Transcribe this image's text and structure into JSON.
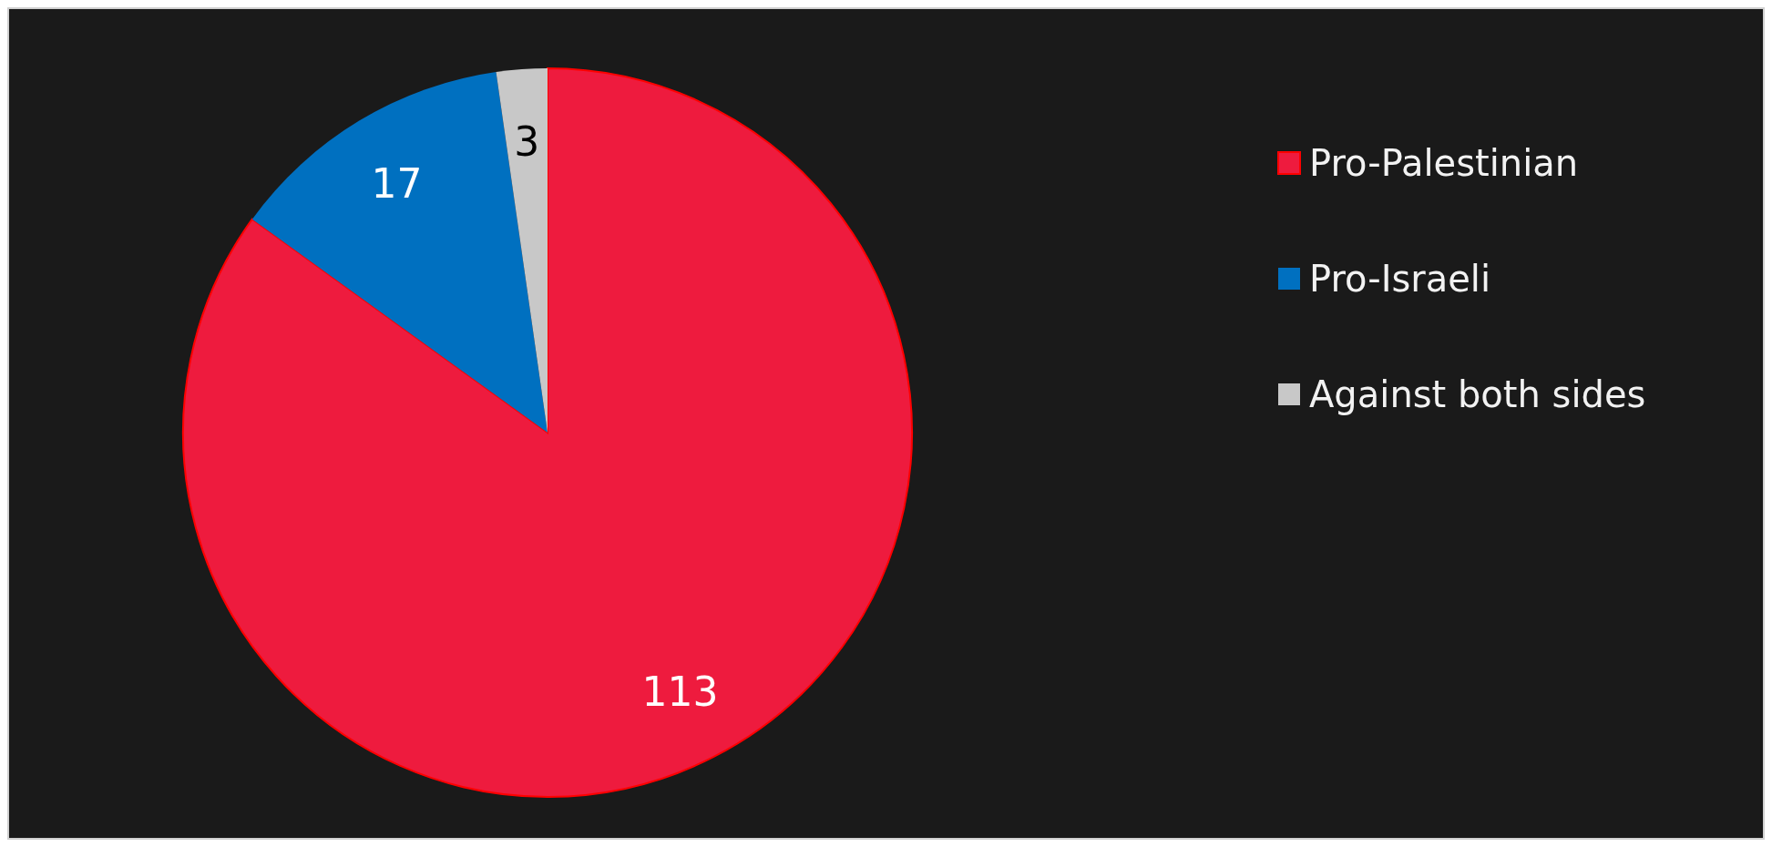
{
  "chart_data": {
    "type": "pie",
    "categories": [
      "Pro-Palestinian",
      "Pro-Israeli",
      "Against both sides"
    ],
    "values": [
      113,
      17,
      3
    ],
    "colors": [
      "#ee1b3e",
      "#0070c0",
      "#c8c8c8"
    ],
    "data_labels": true,
    "legend": "right"
  }
}
